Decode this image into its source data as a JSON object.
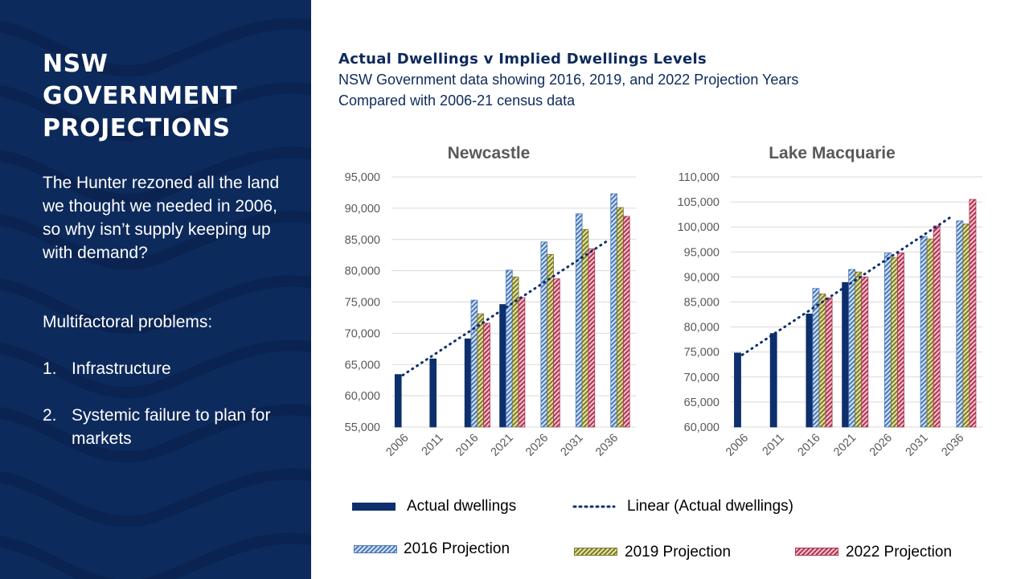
{
  "left_panel": {
    "heading": "NSW GOVERNMENT PROJECTIONS",
    "paragraph1": "The Hunter rezoned all the land we thought we needed in 2006, so why isn’t supply keeping up with demand?",
    "paragraph2": "Multifactoral problems:",
    "list": [
      {
        "number": "1.",
        "text": "Infrastructure"
      },
      {
        "number": "2.",
        "text": "Systemic failure to plan for markets"
      }
    ]
  },
  "header": {
    "title": "Actual Dwellings v Implied Dwellings Levels",
    "subtitle_line1": "NSW Government data showing 2016, 2019, and 2022 Projection Years",
    "subtitle_line2": "Compared with 2006-21 census data"
  },
  "colors": {
    "panel": "#0d2a5c",
    "actual": "#0d2f6b",
    "trend": "#0d2f6b",
    "p2016": "#a9c4e6",
    "p2019": "#c5c274",
    "p2022": "#d98fa6",
    "text": "#595959",
    "grid": "#d9d9d9"
  },
  "chart_data": [
    {
      "type": "bar",
      "title": "Newcastle",
      "categories": [
        "2006",
        "2011",
        "2016",
        "2021",
        "2026",
        "2031",
        "2036"
      ],
      "ylim": [
        55000,
        95000
      ],
      "yticks": [
        "55,000",
        "60,000",
        "65,000",
        "70,000",
        "75,000",
        "80,000",
        "85,000",
        "90,000",
        "95,000"
      ],
      "grid": true,
      "series": [
        {
          "name": "Actual dwellings",
          "values": [
            63400,
            65900,
            69100,
            74600,
            null,
            null,
            null
          ]
        },
        {
          "name": "2016 Projection",
          "values": [
            null,
            null,
            75300,
            80100,
            84600,
            89100,
            92300
          ]
        },
        {
          "name": "2019 Projection",
          "values": [
            null,
            null,
            73100,
            79000,
            82600,
            86600,
            90100
          ]
        },
        {
          "name": "2022 Projection",
          "values": [
            null,
            null,
            71600,
            75700,
            78700,
            83500,
            88700
          ]
        }
      ],
      "trendline": {
        "name": "Linear (Actual dwellings)",
        "start": [
          2006,
          62800
        ],
        "end": [
          2036,
          84800
        ]
      }
    },
    {
      "type": "bar",
      "title": "Lake Macquarie",
      "categories": [
        "2006",
        "2011",
        "2016",
        "2021",
        "2026",
        "2031",
        "2036"
      ],
      "ylim": [
        60000,
        110000
      ],
      "yticks": [
        "60,000",
        "65,000",
        "70,000",
        "75,000",
        "80,000",
        "85,000",
        "90,000",
        "95,000",
        "100,000",
        "105,000",
        "110,000"
      ],
      "grid": true,
      "series": [
        {
          "name": "Actual dwellings",
          "values": [
            74800,
            78700,
            82600,
            88900,
            null,
            null,
            null
          ]
        },
        {
          "name": "2016 Projection",
          "values": [
            null,
            null,
            87700,
            91500,
            94800,
            98100,
            101200
          ]
        },
        {
          "name": "2019 Projection",
          "values": [
            null,
            null,
            86600,
            91000,
            93900,
            97600,
            100600
          ]
        },
        {
          "name": "2022 Projection",
          "values": [
            null,
            null,
            85800,
            90000,
            94800,
            100200,
            105500
          ]
        }
      ],
      "trendline": {
        "name": "Linear (Actual dwellings)",
        "start": [
          2006,
          73800
        ],
        "end": [
          2036,
          102300
        ]
      }
    }
  ],
  "legend": {
    "actual": "Actual dwellings",
    "linear": "Linear (Actual dwellings)",
    "p2016": "2016 Projection",
    "p2019": "2019 Projection",
    "p2022": "2022 Projection"
  }
}
